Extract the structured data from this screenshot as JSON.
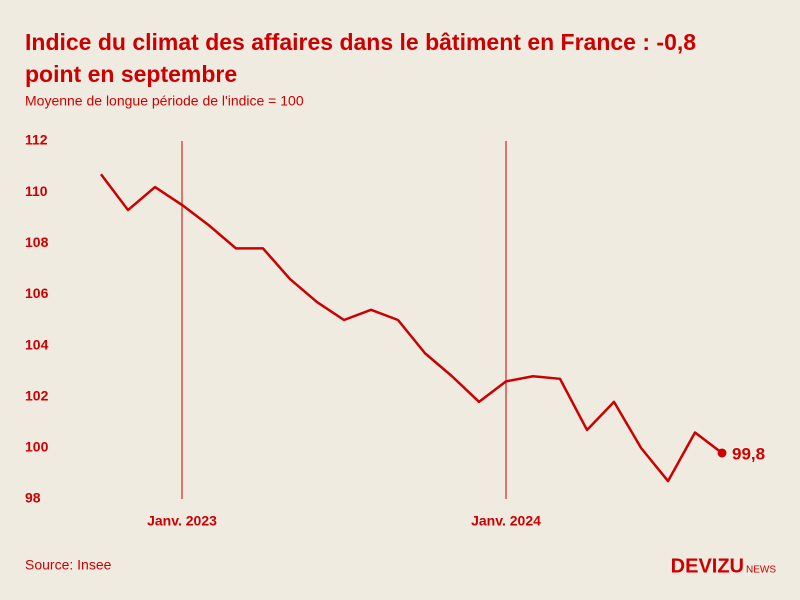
{
  "chart_data": {
    "type": "line",
    "title": "Indice du climat des affaires dans le bâtiment en France : -0,8 point en septembre",
    "subtitle": "Moyenne de longue période de l'indice = 100",
    "categories": [
      null,
      null,
      null,
      "Janv. 2023",
      null,
      null,
      null,
      null,
      null,
      null,
      null,
      null,
      null,
      null,
      null,
      "Janv. 2024",
      null,
      null,
      null,
      null,
      null,
      null,
      null,
      null
    ],
    "series": [
      {
        "name": "Indice",
        "color": "#cc0000",
        "values": [
          110.7,
          109.3,
          110.2,
          109.5,
          108.7,
          107.8,
          107.8,
          106.6,
          105.7,
          105.0,
          105.4,
          105.0,
          103.7,
          102.8,
          101.8,
          102.6,
          102.8,
          102.7,
          100.7,
          101.8,
          100.0,
          98.7,
          100.6,
          99.8
        ],
        "value_labels": [
          null,
          null,
          null,
          null,
          null,
          null,
          null,
          null,
          null,
          null,
          null,
          null,
          null,
          null,
          null,
          null,
          null,
          null,
          null,
          null,
          null,
          null,
          null,
          "99,8"
        ]
      }
    ],
    "ylim": [
      98,
      112
    ],
    "yticks": [
      98,
      100,
      102,
      104,
      106,
      108,
      110,
      112
    ],
    "source": "Source: Insee",
    "brand": "DEVIZU",
    "brand_suffix": "NEWS"
  }
}
